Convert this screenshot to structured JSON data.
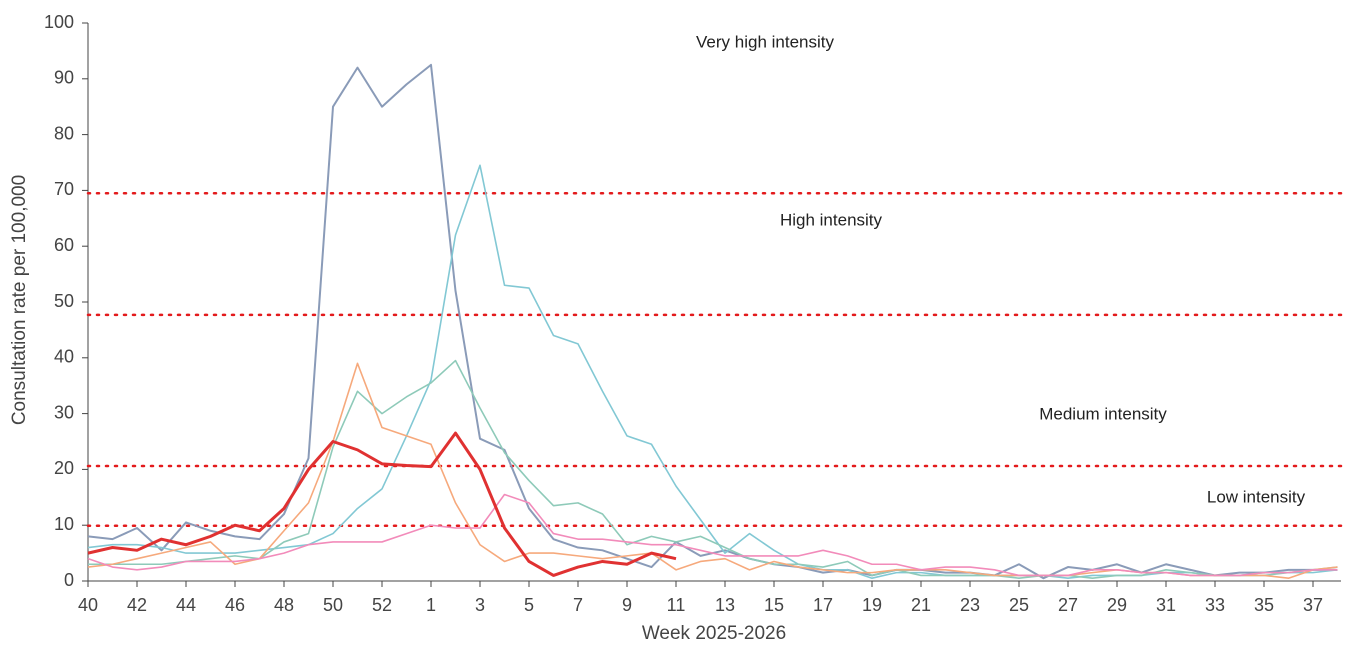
{
  "chart_data": {
    "type": "line",
    "y_label": "Consultation rate per 100,000",
    "x_label": "Week 2025-2026",
    "categories": [
      "40",
      null,
      "42",
      null,
      "44",
      null,
      "46",
      null,
      "48",
      null,
      "50",
      null,
      "52",
      null,
      "1",
      null,
      "3",
      null,
      "5",
      null,
      "7",
      null,
      "9",
      null,
      "11",
      null,
      "13",
      null,
      "15",
      null,
      "17",
      null,
      "19",
      null,
      "21",
      null,
      "23",
      null,
      "25",
      null,
      "27",
      null,
      "29",
      null,
      "31",
      null,
      "33",
      null,
      "35",
      null,
      "37",
      null
    ],
    "ylim": [
      0,
      100
    ],
    "yticks": [
      0,
      10,
      20,
      30,
      40,
      50,
      60,
      70,
      80,
      90,
      100
    ],
    "threshold_color": "#e31a1c",
    "thresholds": [
      9.9,
      20.6,
      47.7,
      69.5
    ],
    "intensity_labels": [
      "Low intensity",
      "Medium intensity",
      "High intensity",
      "Very high intensity"
    ],
    "series": [
      {
        "color": "#8a9bb8",
        "width": 2,
        "values": [
          8,
          7.5,
          9.5,
          5.5,
          10.5,
          9,
          8,
          7.5,
          12,
          22,
          85,
          92,
          85,
          89,
          92.5,
          52,
          25.5,
          23.5,
          13,
          7.5,
          6,
          5.5,
          4,
          2.5,
          7,
          4.5,
          5.5,
          4,
          3,
          2.5,
          1.5,
          2,
          1,
          2,
          2,
          1.5,
          1.5,
          1,
          3,
          0.5,
          2.5,
          2,
          3,
          1.5,
          3,
          2,
          1,
          1.5,
          1.5,
          2,
          2,
          2
        ]
      },
      {
        "color": "#82c8d4",
        "width": 1.6,
        "values": [
          6,
          6.5,
          6.5,
          6,
          5,
          5,
          5,
          5.5,
          6,
          6.5,
          8.5,
          13,
          16.5,
          26,
          36,
          62,
          74.5,
          53,
          52.5,
          44,
          42.5,
          34,
          26,
          24.5,
          17,
          11,
          5,
          8.5,
          5.5,
          3,
          2,
          2,
          0.5,
          1.5,
          1.5,
          1,
          1,
          1,
          1,
          1,
          0.5,
          1,
          1,
          1,
          1.5,
          1.5,
          1,
          1,
          1.5,
          1.5,
          1.5,
          2
        ]
      },
      {
        "color": "#8ecab9",
        "width": 1.6,
        "values": [
          3,
          3,
          3,
          3,
          3.5,
          4,
          4.5,
          4,
          7,
          8.5,
          24,
          34,
          30,
          33,
          35.5,
          39.5,
          31,
          23,
          18,
          13.5,
          14,
          12,
          6.5,
          8,
          7,
          8,
          6,
          4,
          3,
          3,
          2.5,
          3.5,
          1,
          2,
          1,
          1,
          1,
          1,
          0.5,
          1,
          1,
          0.5,
          1,
          1,
          2,
          1.5,
          1,
          1,
          1,
          1.5,
          2,
          2.5
        ]
      },
      {
        "color": "#f6a97c",
        "width": 1.6,
        "values": [
          2.5,
          3,
          4,
          5,
          6,
          7,
          3,
          4,
          9,
          14,
          25,
          39,
          27.5,
          26,
          24.5,
          14,
          6.5,
          3.5,
          5,
          5,
          4.5,
          4,
          4.5,
          5,
          2,
          3.5,
          4,
          2,
          3.5,
          2.5,
          2,
          1.5,
          1.5,
          2,
          2,
          2,
          1.5,
          1,
          1,
          1,
          1,
          1.5,
          2,
          1.5,
          1.5,
          1,
          1,
          1,
          1,
          0.5,
          2,
          2.5
        ]
      },
      {
        "color": "#f28bba",
        "width": 1.6,
        "values": [
          4,
          2.5,
          2,
          2.5,
          3.5,
          3.5,
          3.5,
          4,
          5,
          6.5,
          7,
          7,
          7,
          8.5,
          10,
          9.5,
          9.5,
          15.5,
          14,
          8.5,
          7.5,
          7.5,
          7,
          6.5,
          6.5,
          5.5,
          4.5,
          4.5,
          4.5,
          4.5,
          5.5,
          4.5,
          3,
          3,
          2,
          2.5,
          2.5,
          2,
          1,
          1,
          1,
          2,
          2,
          1.5,
          1.5,
          1,
          1,
          1,
          1.5,
          1.5,
          2,
          2
        ]
      },
      {
        "color": "#e03131",
        "width": 3,
        "values": [
          5,
          6,
          5.5,
          7.5,
          6.5,
          8,
          10,
          9,
          13,
          20,
          25,
          23.5,
          21,
          20.7,
          20.5,
          26.5,
          20,
          9.5,
          3.5,
          1,
          2.5,
          3.5,
          3,
          5,
          4,
          null,
          null,
          null,
          null,
          null,
          null,
          null,
          null,
          null,
          null,
          null,
          null,
          null,
          null,
          null,
          null,
          null,
          null,
          null,
          null,
          null,
          null,
          null,
          null,
          null,
          null,
          null
        ]
      }
    ]
  }
}
